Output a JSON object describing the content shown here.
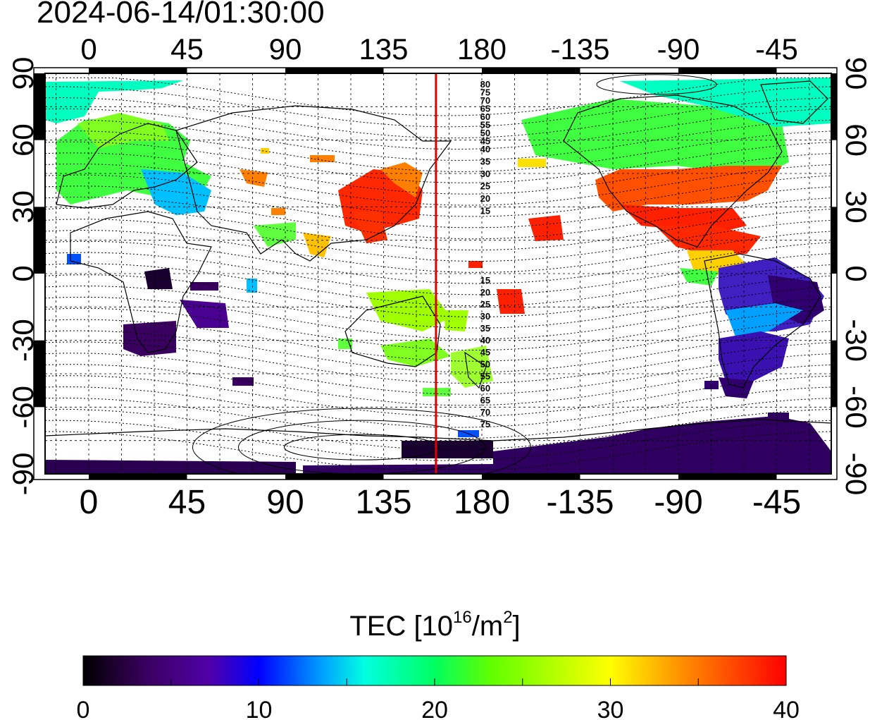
{
  "timestamp": "2024-06-14/01:30:00",
  "map": {
    "top_lon_ticks": [
      "0",
      "45",
      "90",
      "135",
      "180",
      "-135",
      "-90",
      "-45"
    ],
    "bottom_lon_ticks": [
      "0",
      "45",
      "90",
      "135",
      "180",
      "-135",
      "-90",
      "-45"
    ],
    "left_lat_ticks": [
      "90",
      "60",
      "30",
      "0",
      "-30",
      "-60",
      "-90"
    ],
    "right_lat_ticks": [
      "90",
      "60",
      "30",
      "0",
      "-30",
      "-60",
      "-90"
    ],
    "lon_tick_values": [
      0,
      45,
      90,
      135,
      180,
      225,
      270,
      315
    ],
    "lat_tick_values": [
      90,
      60,
      30,
      0,
      -30,
      -60,
      -90
    ],
    "lon_range": [
      -20,
      340
    ],
    "lat_range": [
      -90,
      90
    ],
    "terminator_lon": 159,
    "terminator_color": "#e00000",
    "contour_labels_north": [
      "80",
      "75",
      "70",
      "65",
      "60",
      "55",
      "50",
      "45",
      "40",
      "35",
      "30",
      "25",
      "20",
      "15"
    ],
    "contour_labels_south": [
      "15",
      "20",
      "25",
      "30",
      "35",
      "40",
      "45",
      "50",
      "55",
      "60",
      "65",
      "70",
      "75"
    ]
  },
  "colorbar": {
    "title_prefix": "TEC  [10",
    "title_sup1": "16",
    "title_mid": "/m",
    "title_sup2": "2",
    "title_suffix": "]",
    "tick_labels": [
      "0",
      "10",
      "20",
      "30",
      "40"
    ],
    "min": 0,
    "max": 40,
    "colors": [
      "#000000",
      "#3a0060",
      "#5000a8",
      "#0000ff",
      "#00a0ff",
      "#00ffe0",
      "#00ff60",
      "#60ff00",
      "#ffff00",
      "#ff9000",
      "#ff3000",
      "#ff0000"
    ]
  }
}
